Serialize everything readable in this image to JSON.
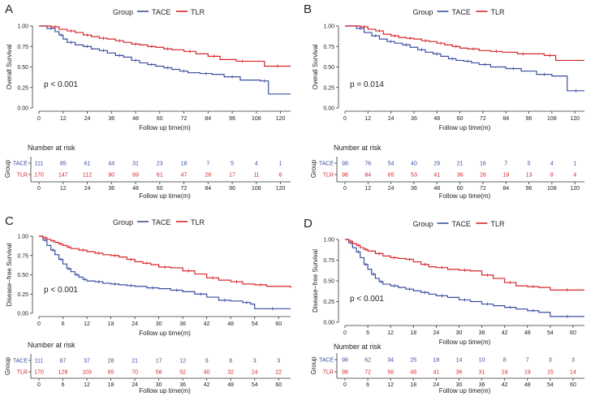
{
  "legend_title": "Group",
  "colors": {
    "TACE": "#3a4fa0",
    "TLR": "#d7262c",
    "axis": "#333333",
    "text": "#222222"
  },
  "chart_data": [
    {
      "panel_label": "A",
      "type": "line",
      "title": "",
      "ylabel": "Overall Survival",
      "xlabel": "Follow up time(m)",
      "ylim": [
        0,
        1
      ],
      "yticks": [
        "0.00",
        "0.25",
        "0.50",
        "0.75",
        "1.00"
      ],
      "xlim": [
        0,
        125
      ],
      "xticks": [
        "0",
        "12",
        "24",
        "36",
        "48",
        "60",
        "72",
        "84",
        "96",
        "108",
        "120"
      ],
      "pvalue": "p < 0.001",
      "legend": [
        "TACE",
        "TLR"
      ],
      "series": [
        {
          "name": "TACE",
          "x": [
            0,
            4,
            8,
            10,
            12,
            14,
            18,
            22,
            26,
            30,
            34,
            38,
            42,
            46,
            50,
            54,
            58,
            62,
            66,
            70,
            74,
            80,
            86,
            92,
            100,
            110,
            114,
            125
          ],
          "y": [
            1,
            0.97,
            0.93,
            0.89,
            0.84,
            0.8,
            0.77,
            0.75,
            0.72,
            0.7,
            0.67,
            0.64,
            0.62,
            0.58,
            0.55,
            0.53,
            0.51,
            0.49,
            0.47,
            0.45,
            0.43,
            0.42,
            0.41,
            0.38,
            0.34,
            0.33,
            0.17,
            0.17
          ]
        },
        {
          "name": "TLR",
          "x": [
            0,
            6,
            10,
            14,
            18,
            22,
            26,
            30,
            34,
            38,
            42,
            46,
            50,
            54,
            58,
            62,
            66,
            72,
            78,
            84,
            90,
            98,
            104,
            112,
            125
          ],
          "y": [
            1,
            0.99,
            0.96,
            0.94,
            0.92,
            0.89,
            0.87,
            0.85,
            0.84,
            0.82,
            0.8,
            0.78,
            0.77,
            0.75,
            0.74,
            0.72,
            0.71,
            0.69,
            0.66,
            0.63,
            0.59,
            0.57,
            0.57,
            0.51,
            0.51
          ]
        }
      ],
      "risk_table": {
        "title": "Number at risk",
        "ylabel": "Group",
        "rows": [
          {
            "name": "TACE",
            "values": [
              "111",
              "85",
              "61",
              "44",
              "31",
              "23",
              "18",
              "7",
              "5",
              "4",
              "1"
            ]
          },
          {
            "name": "TLR",
            "values": [
              "170",
              "147",
              "112",
              "90",
              "69",
              "61",
              "47",
              "28",
              "17",
              "11",
              "6"
            ]
          }
        ],
        "xlabel": "Follow up time(m)"
      }
    },
    {
      "panel_label": "B",
      "type": "line",
      "title": "",
      "ylabel": "Overall Survival",
      "xlabel": "Follow up time(m)",
      "ylim": [
        0,
        1
      ],
      "yticks": [
        "0.00",
        "0.25",
        "0.50",
        "0.75",
        "1.00"
      ],
      "xlim": [
        0,
        125
      ],
      "xticks": [
        "0",
        "12",
        "24",
        "36",
        "48",
        "60",
        "72",
        "84",
        "96",
        "108",
        "120"
      ],
      "pvalue": "p = 0.014",
      "legend": [
        "TACE",
        "TLR"
      ],
      "series": [
        {
          "name": "TACE",
          "x": [
            0,
            6,
            10,
            14,
            18,
            22,
            26,
            30,
            34,
            38,
            42,
            46,
            50,
            54,
            58,
            62,
            66,
            70,
            76,
            84,
            92,
            100,
            108,
            116,
            125
          ],
          "y": [
            1,
            0.97,
            0.92,
            0.88,
            0.84,
            0.81,
            0.79,
            0.77,
            0.74,
            0.71,
            0.68,
            0.66,
            0.63,
            0.6,
            0.58,
            0.57,
            0.55,
            0.53,
            0.5,
            0.48,
            0.45,
            0.41,
            0.39,
            0.21,
            0.21
          ]
        },
        {
          "name": "TLR",
          "x": [
            0,
            8,
            12,
            16,
            20,
            24,
            28,
            32,
            36,
            40,
            44,
            48,
            52,
            56,
            60,
            64,
            70,
            76,
            82,
            90,
            96,
            104,
            110,
            125
          ],
          "y": [
            1,
            0.99,
            0.96,
            0.94,
            0.9,
            0.88,
            0.86,
            0.85,
            0.84,
            0.82,
            0.81,
            0.79,
            0.77,
            0.75,
            0.73,
            0.72,
            0.7,
            0.69,
            0.68,
            0.66,
            0.66,
            0.64,
            0.58,
            0.58
          ]
        }
      ],
      "risk_table": {
        "title": "Number at risk",
        "ylabel": "Group",
        "rows": [
          {
            "name": "TACE",
            "values": [
              "98",
              "76",
              "54",
              "40",
              "29",
              "21",
              "16",
              "7",
              "5",
              "4",
              "1"
            ]
          },
          {
            "name": "TLR",
            "values": [
              "98",
              "84",
              "65",
              "53",
              "41",
              "36",
              "26",
              "19",
              "13",
              "8",
              "4"
            ]
          }
        ],
        "xlabel": "Follow up time(m)"
      }
    },
    {
      "panel_label": "C",
      "type": "line",
      "title": "",
      "ylabel": "Disease−free Survival",
      "xlabel": "Follow up time(m)",
      "ylim": [
        0,
        1
      ],
      "yticks": [
        "0.00",
        "0.25",
        "0.50",
        "0.75",
        "1.00"
      ],
      "xlim": [
        0,
        63
      ],
      "xticks": [
        "0",
        "6",
        "12",
        "18",
        "24",
        "30",
        "36",
        "42",
        "48",
        "54",
        "60"
      ],
      "pvalue": "p < 0.001",
      "legend": [
        "TACE",
        "TLR"
      ],
      "series": [
        {
          "name": "TACE",
          "x": [
            0,
            1,
            2,
            3,
            4,
            5,
            6,
            7,
            8,
            9,
            10,
            11,
            12,
            14,
            16,
            18,
            20,
            22,
            24,
            27,
            30,
            33,
            36,
            39,
            42,
            45,
            48,
            51,
            53,
            54,
            63
          ],
          "y": [
            1,
            0.95,
            0.88,
            0.82,
            0.76,
            0.7,
            0.64,
            0.58,
            0.54,
            0.5,
            0.47,
            0.44,
            0.42,
            0.41,
            0.39,
            0.38,
            0.37,
            0.36,
            0.35,
            0.33,
            0.32,
            0.3,
            0.28,
            0.25,
            0.21,
            0.17,
            0.16,
            0.14,
            0.12,
            0.06,
            0.06
          ]
        },
        {
          "name": "TLR",
          "x": [
            0,
            1,
            2,
            3,
            4,
            5,
            6,
            7,
            8,
            10,
            12,
            14,
            16,
            18,
            20,
            22,
            24,
            26,
            28,
            30,
            33,
            36,
            39,
            42,
            45,
            48,
            51,
            54,
            57,
            63
          ],
          "y": [
            1,
            0.98,
            0.96,
            0.94,
            0.92,
            0.9,
            0.88,
            0.86,
            0.84,
            0.82,
            0.8,
            0.78,
            0.76,
            0.75,
            0.73,
            0.7,
            0.67,
            0.65,
            0.63,
            0.6,
            0.59,
            0.55,
            0.51,
            0.46,
            0.43,
            0.41,
            0.38,
            0.37,
            0.35,
            0.33
          ]
        }
      ],
      "risk_table": {
        "title": "Number at risk",
        "ylabel": "Group",
        "rows": [
          {
            "name": "TACE",
            "values": [
              "111",
              "67",
              "37",
              "28",
              "21",
              "17",
              "12",
              "9",
              "8",
              "3",
              "3"
            ]
          },
          {
            "name": "TLR",
            "values": [
              "170",
              "128",
              "103",
              "85",
              "70",
              "58",
              "52",
              "40",
              "32",
              "24",
              "22"
            ]
          }
        ],
        "xlabel": "Follow up time(m)"
      }
    },
    {
      "panel_label": "D",
      "type": "line",
      "title": "",
      "ylabel": "Disease−free Survival",
      "xlabel": "Follow up time(m)",
      "ylim": [
        0,
        1
      ],
      "yticks": [
        "0.00",
        "0.25",
        "0.50",
        "0.75",
        "1.00"
      ],
      "xlim": [
        0,
        63
      ],
      "xticks": [
        "0",
        "6",
        "12",
        "18",
        "24",
        "30",
        "36",
        "42",
        "48",
        "54",
        "60"
      ],
      "pvalue": "p < 0.001",
      "legend": [
        "TACE",
        "TLR"
      ],
      "series": [
        {
          "name": "TACE",
          "x": [
            0,
            1,
            2,
            3,
            4,
            5,
            6,
            7,
            8,
            9,
            10,
            12,
            14,
            16,
            18,
            20,
            22,
            24,
            27,
            30,
            33,
            36,
            39,
            42,
            45,
            48,
            51,
            54,
            63
          ],
          "y": [
            1,
            0.96,
            0.9,
            0.85,
            0.78,
            0.7,
            0.64,
            0.58,
            0.53,
            0.49,
            0.46,
            0.44,
            0.42,
            0.4,
            0.38,
            0.36,
            0.34,
            0.32,
            0.3,
            0.27,
            0.25,
            0.22,
            0.2,
            0.18,
            0.16,
            0.14,
            0.12,
            0.07,
            0.07
          ]
        },
        {
          "name": "TLR",
          "x": [
            0,
            1,
            2,
            3,
            4,
            5,
            6,
            8,
            10,
            12,
            14,
            16,
            18,
            20,
            22,
            24,
            27,
            30,
            33,
            36,
            39,
            42,
            45,
            48,
            51,
            54,
            63
          ],
          "y": [
            1,
            0.98,
            0.95,
            0.93,
            0.9,
            0.88,
            0.86,
            0.83,
            0.8,
            0.78,
            0.77,
            0.76,
            0.73,
            0.7,
            0.67,
            0.66,
            0.64,
            0.63,
            0.62,
            0.57,
            0.53,
            0.48,
            0.44,
            0.43,
            0.42,
            0.39,
            0.39
          ]
        }
      ],
      "risk_table": {
        "title": "Number at risk",
        "ylabel": "Group",
        "rows": [
          {
            "name": "TACE",
            "values": [
              "98",
              "62",
              "34",
              "25",
              "18",
              "14",
              "10",
              "8",
              "7",
              "3",
              "3"
            ]
          },
          {
            "name": "TLR",
            "values": [
              "98",
              "72",
              "58",
              "48",
              "41",
              "36",
              "31",
              "24",
              "19",
              "15",
              "14"
            ]
          }
        ],
        "xlabel": "Follow up time(m)"
      }
    }
  ]
}
